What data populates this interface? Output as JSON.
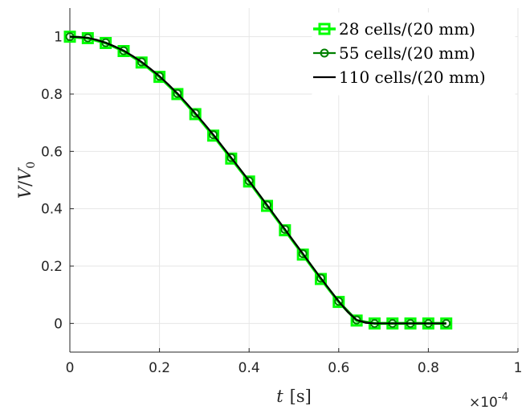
{
  "chart_data": {
    "type": "line",
    "xlabel": "t [s]",
    "xlabel_italic": "t",
    "xlabel_unit": "[s]",
    "ylabel": "V/V0",
    "ylabel_parts": {
      "v": "V",
      "slash": "/",
      "v0": "V",
      "sub": "0"
    },
    "x_exponent_base": "×10",
    "x_exponent_power": "-4",
    "xlim": [
      0,
      1
    ],
    "ylim": [
      -0.1,
      1.1
    ],
    "x_ticks": [
      0,
      0.2,
      0.4,
      0.6,
      0.8,
      1
    ],
    "x_tick_labels": [
      "0",
      "0.2",
      "0.4",
      "0.6",
      "0.8",
      "1"
    ],
    "y_ticks": [
      0,
      0.2,
      0.4,
      0.6,
      0.8,
      1
    ],
    "y_tick_labels": [
      "0",
      "0.2",
      "0.4",
      "0.6",
      "0.8",
      "1"
    ],
    "grid": true,
    "legend_position": "top-right",
    "series": [
      {
        "name": "28 cells/(20 mm)",
        "color": "#00ff00",
        "marker": "square",
        "x": [
          0,
          0.04,
          0.08,
          0.12,
          0.16,
          0.2,
          0.24,
          0.28,
          0.32,
          0.36,
          0.4,
          0.44,
          0.48,
          0.52,
          0.56,
          0.6,
          0.64,
          0.68,
          0.72,
          0.76,
          0.8,
          0.84
        ],
        "y": [
          1.0,
          0.995,
          0.978,
          0.95,
          0.91,
          0.86,
          0.8,
          0.73,
          0.655,
          0.575,
          0.495,
          0.41,
          0.325,
          0.24,
          0.155,
          0.075,
          0.01,
          0.0,
          0.0,
          0.0,
          0.0,
          0.0
        ]
      },
      {
        "name": "55 cells/(20 mm)",
        "color": "#008000",
        "marker": "circle",
        "x": [
          0,
          0.04,
          0.08,
          0.12,
          0.16,
          0.2,
          0.24,
          0.28,
          0.32,
          0.36,
          0.4,
          0.44,
          0.48,
          0.52,
          0.56,
          0.6,
          0.64,
          0.68,
          0.72,
          0.76,
          0.8,
          0.84
        ],
        "y": [
          1.0,
          0.996,
          0.979,
          0.951,
          0.912,
          0.862,
          0.802,
          0.733,
          0.658,
          0.578,
          0.497,
          0.413,
          0.328,
          0.243,
          0.158,
          0.077,
          0.012,
          0.0,
          0.0,
          0.0,
          0.0,
          0.0
        ]
      },
      {
        "name": "110 cells/(20 mm)",
        "color": "#000000",
        "marker": "none",
        "x": [
          0,
          0.02,
          0.04,
          0.06,
          0.08,
          0.1,
          0.12,
          0.14,
          0.16,
          0.18,
          0.2,
          0.22,
          0.24,
          0.26,
          0.28,
          0.3,
          0.32,
          0.34,
          0.36,
          0.38,
          0.4,
          0.42,
          0.44,
          0.46,
          0.48,
          0.5,
          0.52,
          0.54,
          0.56,
          0.58,
          0.6,
          0.62,
          0.64,
          0.66,
          0.68,
          0.72,
          0.76,
          0.8,
          0.84
        ],
        "y": [
          1.0,
          0.999,
          0.996,
          0.989,
          0.979,
          0.966,
          0.951,
          0.933,
          0.912,
          0.888,
          0.862,
          0.833,
          0.802,
          0.768,
          0.733,
          0.696,
          0.658,
          0.618,
          0.578,
          0.538,
          0.497,
          0.455,
          0.413,
          0.37,
          0.328,
          0.285,
          0.243,
          0.2,
          0.158,
          0.117,
          0.077,
          0.04,
          0.012,
          0.002,
          0.0,
          0.0,
          0.0,
          0.0,
          0.0
        ]
      }
    ]
  }
}
